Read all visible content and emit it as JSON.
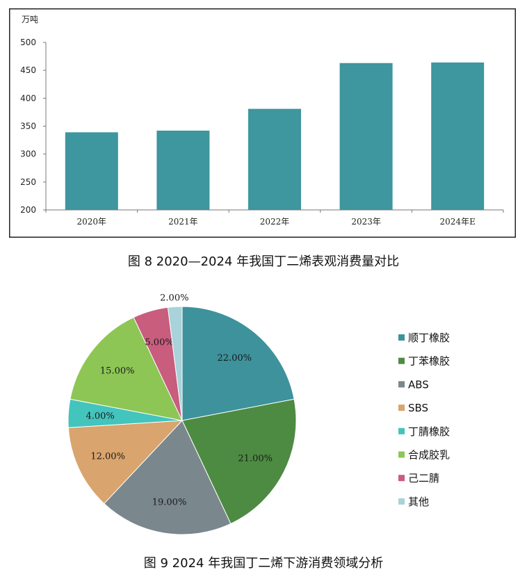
{
  "captions": {
    "bar": "图 8 2020—2024 年我国丁二烯表观消费量对比",
    "pie": "图 9 2024 年我国丁二烯下游消费领域分析"
  },
  "chart_data": [
    {
      "type": "bar",
      "ylabel": "万吨",
      "categories": [
        "2020年",
        "2021年",
        "2022年",
        "2023年",
        "2024年E"
      ],
      "values": [
        339,
        342,
        381,
        463,
        464
      ],
      "ylim": [
        200,
        500
      ],
      "yticks": [
        200,
        250,
        300,
        350,
        400,
        450,
        500
      ],
      "color": "#3e969e",
      "grid": false
    },
    {
      "type": "pie",
      "legend_position": "right",
      "slices": [
        {
          "label": "顺丁橡胶",
          "value": 22,
          "display": "22.00%",
          "color": "#3d929c"
        },
        {
          "label": "丁苯橡胶",
          "value": 21,
          "display": "21.00%",
          "color": "#4d8b42"
        },
        {
          "label": "ABS",
          "value": 19,
          "display": "19.00%",
          "color": "#7a878c"
        },
        {
          "label": "SBS",
          "value": 12,
          "display": "12.00%",
          "color": "#d9a46d"
        },
        {
          "label": "丁腈橡胶",
          "value": 4,
          "display": "4.00%",
          "color": "#43c4bd"
        },
        {
          "label": "合成胶乳",
          "value": 15,
          "display": "15.00%",
          "color": "#8dc655"
        },
        {
          "label": "己二腈",
          "value": 5,
          "display": "5.00%",
          "color": "#c85d7e"
        },
        {
          "label": "其他",
          "value": 2,
          "display": "2.00%",
          "color": "#a9d2da"
        }
      ]
    }
  ]
}
